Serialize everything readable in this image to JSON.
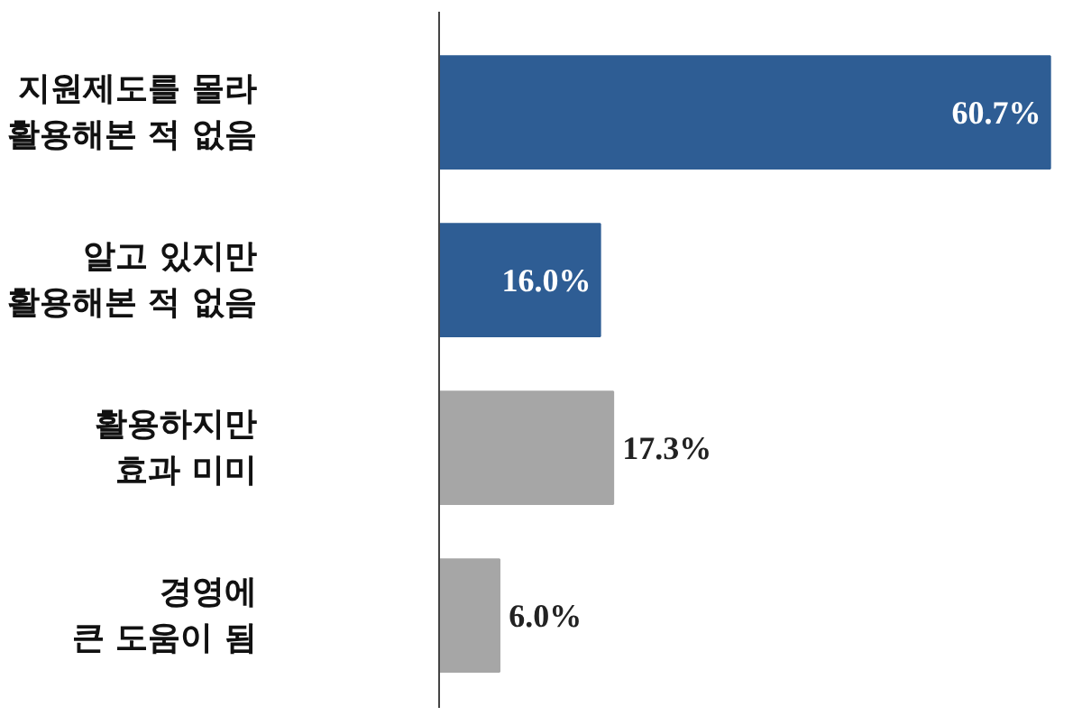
{
  "chart_data": {
    "type": "bar",
    "orientation": "horizontal",
    "categories": [
      "지원제도를 몰라\n활용해본 적 없음",
      "알고 있지만\n활용해본 적 없음",
      "활용하지만\n효과 미미",
      "경영에\n큰 도움이 됨"
    ],
    "values": [
      60.7,
      16.0,
      17.3,
      6.0
    ],
    "colors": [
      "#2e5d94",
      "#2e5d94",
      "#a6a6a6",
      "#a6a6a6"
    ],
    "value_labels": [
      "60.7%",
      "16.0%",
      "17.3%",
      "6.0%"
    ],
    "tick_labels": "y",
    "grid": false
  }
}
